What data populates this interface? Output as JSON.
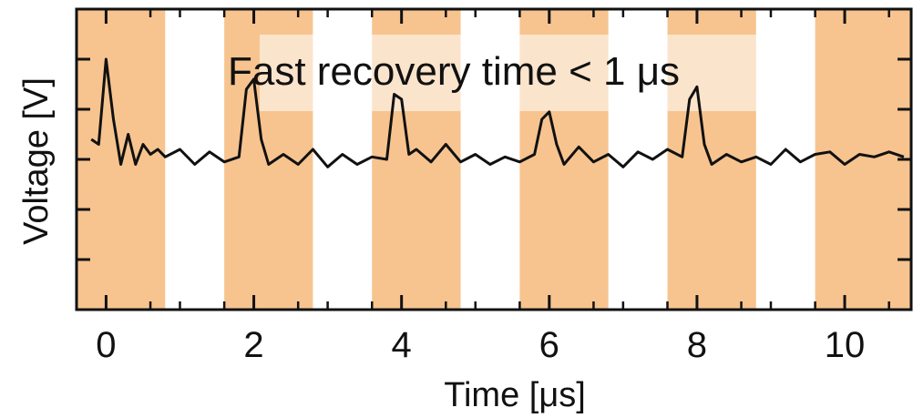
{
  "chart_data": {
    "type": "line",
    "title": "",
    "xlabel": "Time [μs]",
    "ylabel": "Voltage [V]",
    "xlim": [
      -0.4,
      10.9
    ],
    "ylim": [
      0,
      6
    ],
    "xticks": [
      0,
      2,
      4,
      6,
      8,
      10
    ],
    "xtick_labels": [
      "0",
      "2",
      "4",
      "6",
      "8",
      "10"
    ],
    "minor_xticks": [
      -0.4,
      0.6,
      1.0,
      1.6,
      2.6,
      3.0,
      3.6,
      4.6,
      5.0,
      5.6,
      6.6,
      7.0,
      7.6,
      8.6,
      9.0,
      9.6,
      10.6
    ],
    "yticks": [
      1,
      2,
      3,
      4,
      5
    ],
    "ytick_labels": [
      "",
      "",
      "",
      "",
      ""
    ],
    "grid": false,
    "shaded_intervals": [
      [
        -0.4,
        0.8
      ],
      [
        1.6,
        2.8
      ],
      [
        3.6,
        4.8
      ],
      [
        5.6,
        6.8
      ],
      [
        7.6,
        8.8
      ],
      [
        9.6,
        10.9
      ]
    ],
    "shade_color": "#f7c48f",
    "annotation": "Fast recovery time < 1 μs",
    "series": [
      {
        "color": "#111111",
        "x": [
          -0.2,
          -0.1,
          0.0,
          0.1,
          0.2,
          0.3,
          0.4,
          0.5,
          0.6,
          0.7,
          0.8,
          1.0,
          1.2,
          1.4,
          1.6,
          1.8,
          1.9,
          2.0,
          2.1,
          2.2,
          2.4,
          2.6,
          2.8,
          3.0,
          3.2,
          3.4,
          3.6,
          3.8,
          3.9,
          4.0,
          4.1,
          4.2,
          4.4,
          4.6,
          4.8,
          5.0,
          5.2,
          5.4,
          5.6,
          5.8,
          5.9,
          6.0,
          6.1,
          6.2,
          6.4,
          6.6,
          6.8,
          7.0,
          7.2,
          7.4,
          7.6,
          7.8,
          7.9,
          8.0,
          8.1,
          8.2,
          8.4,
          8.6,
          8.8,
          9.0,
          9.2,
          9.4,
          9.6,
          9.8,
          10.0,
          10.2,
          10.4,
          10.6,
          10.8
        ],
        "y": [
          3.4,
          3.3,
          5.0,
          3.8,
          2.9,
          3.5,
          2.9,
          3.3,
          3.1,
          3.2,
          3.05,
          3.2,
          2.9,
          3.15,
          2.95,
          3.05,
          4.4,
          4.6,
          3.4,
          2.9,
          3.1,
          2.9,
          3.2,
          2.85,
          3.1,
          2.9,
          3.05,
          3.0,
          4.3,
          4.2,
          3.1,
          3.2,
          2.95,
          3.3,
          2.95,
          3.1,
          2.9,
          3.05,
          2.95,
          3.1,
          3.8,
          3.95,
          3.3,
          2.9,
          3.25,
          2.95,
          3.1,
          2.85,
          3.15,
          3.0,
          3.2,
          3.05,
          4.2,
          4.45,
          3.3,
          2.9,
          3.1,
          2.95,
          3.05,
          2.9,
          3.2,
          2.95,
          3.1,
          3.15,
          2.9,
          3.1,
          3.05,
          3.15,
          3.05
        ]
      }
    ]
  }
}
